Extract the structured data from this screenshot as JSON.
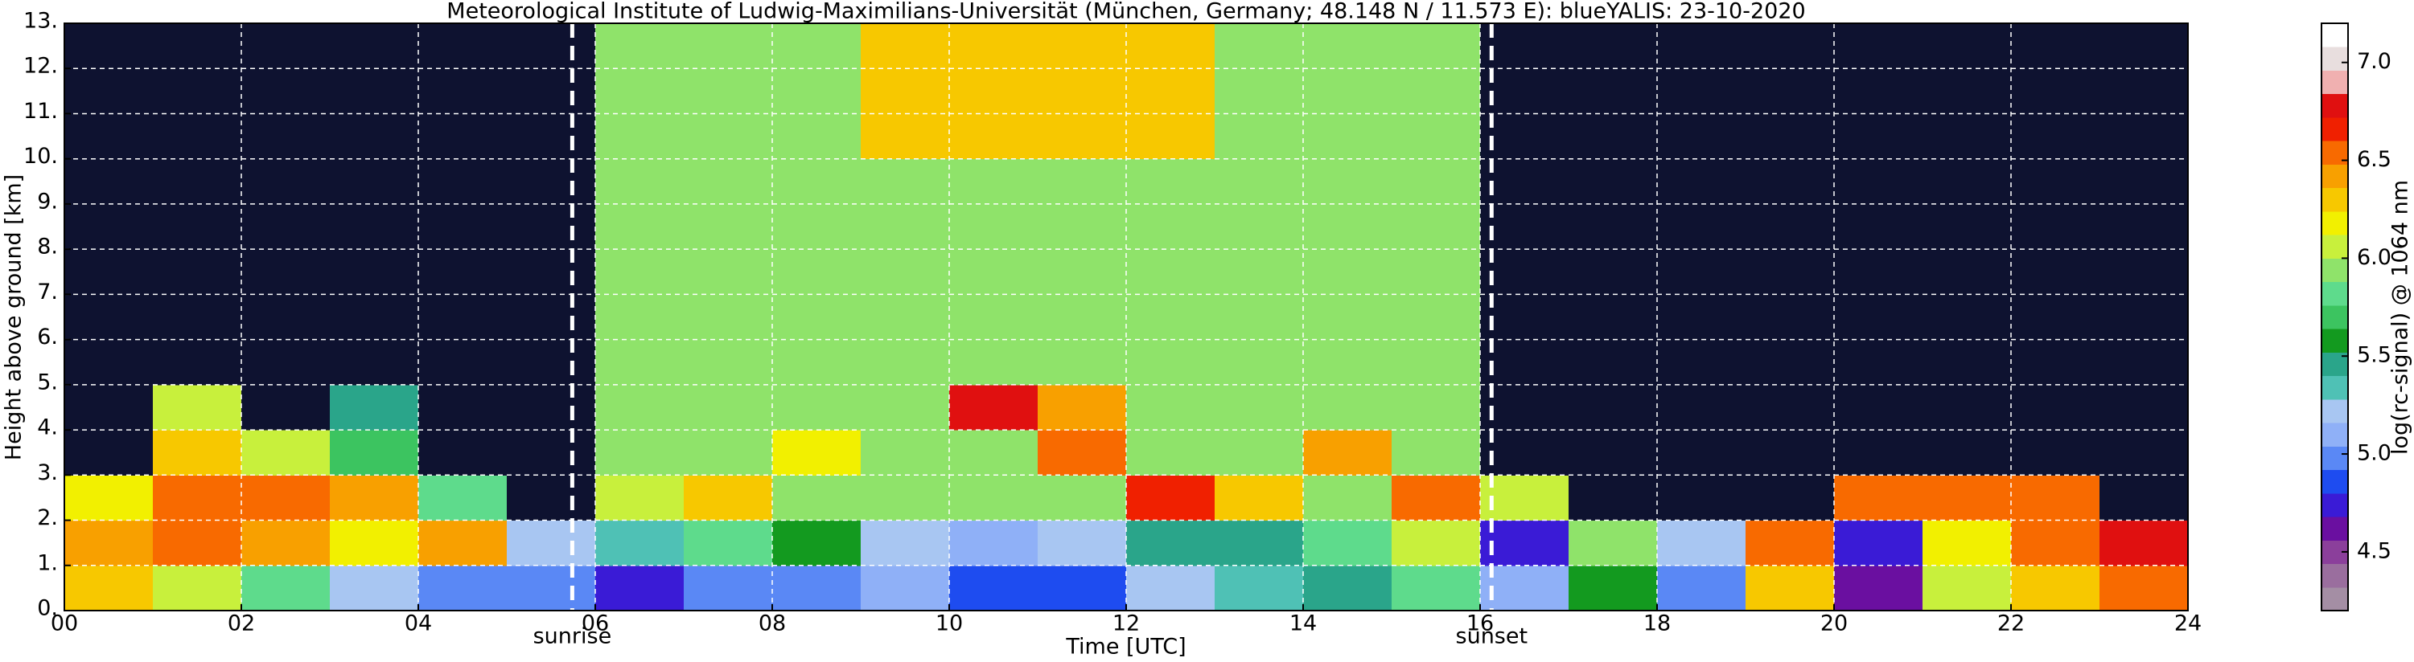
{
  "chart_data": {
    "type": "heatmap",
    "title": "Meteorological Institute of Ludwig-Maximilians-Universität (München, Germany; 48.148 N / 11.573 E):    blueYALIS: 23-10-2020",
    "xlabel": "Time [UTC]",
    "ylabel": "Height above ground [km]",
    "colorbar_label": "log(rc-signal) @ 1064 nm",
    "x": [
      0.5,
      1.5,
      2.5,
      3.5,
      4.5,
      5.5,
      6.5,
      7.5,
      8.5,
      9.5,
      10.5,
      11.5,
      12.5,
      13.5,
      14.5,
      15.5,
      16.5,
      17.5,
      18.5,
      19.5,
      20.5,
      21.5,
      22.5,
      23.5
    ],
    "y": [
      0.5,
      1.5,
      2.5,
      3.5,
      4.5,
      5.5,
      6.5,
      7.5,
      8.5,
      9.5,
      10.5,
      11.5,
      12.5
    ],
    "values": [
      [
        6.3,
        6.0,
        5.8,
        5.2,
        5.0,
        5.0,
        4.8,
        5.0,
        5.0,
        5.1,
        4.9,
        4.9,
        5.2,
        5.3,
        5.5,
        5.8,
        5.1,
        5.6,
        5.0,
        6.3,
        4.6,
        6.0,
        6.3,
        6.5
      ],
      [
        6.4,
        6.5,
        6.4,
        6.2,
        6.4,
        5.2,
        5.3,
        5.8,
        5.6,
        5.2,
        5.1,
        5.2,
        5.5,
        5.4,
        5.8,
        6.0,
        4.8,
        5.9,
        5.2,
        6.6,
        4.7,
        6.2,
        6.5,
        6.8
      ],
      [
        6.2,
        6.6,
        6.5,
        6.4,
        5.8,
        4.0,
        6.0,
        6.3,
        5.9,
        5.9,
        5.9,
        5.9,
        6.7,
        6.3,
        5.9,
        6.5,
        6.0,
        4.0,
        4.0,
        4.0,
        6.5,
        6.6,
        6.6,
        4.0
      ],
      [
        4.0,
        6.3,
        6.0,
        5.7,
        4.0,
        4.0,
        5.9,
        5.9,
        6.2,
        5.9,
        5.9,
        6.6,
        5.9,
        5.9,
        6.4,
        5.9,
        4.0,
        4.0,
        4.0,
        4.0,
        4.0,
        4.0,
        4.0,
        4.0
      ],
      [
        4.0,
        6.0,
        4.0,
        5.5,
        4.0,
        4.0,
        5.9,
        5.9,
        5.9,
        5.9,
        6.8,
        6.4,
        5.9,
        5.9,
        5.9,
        5.9,
        4.0,
        4.0,
        4.0,
        4.0,
        4.0,
        4.0,
        4.0,
        4.0
      ],
      [
        4.0,
        4.0,
        4.0,
        4.0,
        4.0,
        4.0,
        5.9,
        5.9,
        5.9,
        5.9,
        5.9,
        5.9,
        5.9,
        5.9,
        5.9,
        5.9,
        4.0,
        4.0,
        4.0,
        4.0,
        4.0,
        4.0,
        4.0,
        4.0
      ],
      [
        4.0,
        4.0,
        4.0,
        4.0,
        4.0,
        4.0,
        5.9,
        5.9,
        5.9,
        5.9,
        5.9,
        5.9,
        5.9,
        5.9,
        5.9,
        5.9,
        4.0,
        4.0,
        4.0,
        4.0,
        4.0,
        4.0,
        4.0,
        4.0
      ],
      [
        4.0,
        4.0,
        4.0,
        4.0,
        4.0,
        4.0,
        5.9,
        5.9,
        5.9,
        5.9,
        5.9,
        5.9,
        5.9,
        5.9,
        5.9,
        5.9,
        4.0,
        4.0,
        4.0,
        4.0,
        4.0,
        4.0,
        4.0,
        4.0
      ],
      [
        4.0,
        4.0,
        4.0,
        4.0,
        4.0,
        4.0,
        5.9,
        5.9,
        5.9,
        5.9,
        5.9,
        5.9,
        5.9,
        5.9,
        5.9,
        5.9,
        4.0,
        4.0,
        4.0,
        4.0,
        4.0,
        4.0,
        4.0,
        4.0
      ],
      [
        4.0,
        4.0,
        4.0,
        4.0,
        4.0,
        4.0,
        5.9,
        5.9,
        5.9,
        5.9,
        5.9,
        5.9,
        5.9,
        5.9,
        5.9,
        5.9,
        4.0,
        4.0,
        4.0,
        4.0,
        4.0,
        4.0,
        4.0,
        4.0
      ],
      [
        4.0,
        4.0,
        4.0,
        4.0,
        4.0,
        4.0,
        5.9,
        5.9,
        5.9,
        6.3,
        6.3,
        6.3,
        6.3,
        5.9,
        5.9,
        5.9,
        4.0,
        4.0,
        4.0,
        4.0,
        4.0,
        4.0,
        4.0,
        4.0
      ],
      [
        4.0,
        4.0,
        4.0,
        4.0,
        4.0,
        4.0,
        5.9,
        5.9,
        5.9,
        6.3,
        6.3,
        6.3,
        6.3,
        5.9,
        5.9,
        5.9,
        4.0,
        4.0,
        4.0,
        4.0,
        4.0,
        4.0,
        4.0,
        4.0
      ],
      [
        4.0,
        4.0,
        4.0,
        4.0,
        4.0,
        4.0,
        5.9,
        5.9,
        5.9,
        6.3,
        6.3,
        6.3,
        6.3,
        5.9,
        5.9,
        5.9,
        4.0,
        4.0,
        4.0,
        4.0,
        4.0,
        4.0,
        4.0,
        4.0
      ]
    ],
    "xlim": [
      0,
      24
    ],
    "xticks": [
      {
        "value": 0,
        "label": "00"
      },
      {
        "value": 2,
        "label": "02"
      },
      {
        "value": 4,
        "label": "04"
      },
      {
        "value": 6,
        "label": "06"
      },
      {
        "value": 8,
        "label": "08"
      },
      10,
      12,
      14,
      16,
      18,
      20,
      22,
      24
    ],
    "ylim": [
      0,
      13
    ],
    "yticks": [
      {
        "value": 0,
        "label": "0."
      },
      {
        "value": 1,
        "label": "1."
      },
      {
        "value": 2,
        "label": "2."
      },
      {
        "value": 3,
        "label": "3."
      },
      {
        "value": 4,
        "label": "4."
      },
      {
        "value": 5,
        "label": "5."
      },
      {
        "value": 6,
        "label": "6."
      },
      {
        "value": 7,
        "label": "7."
      },
      {
        "value": 8,
        "label": "8."
      },
      {
        "value": 9,
        "label": "9."
      },
      {
        "value": 10,
        "label": "10."
      },
      {
        "value": 11,
        "label": "11."
      },
      {
        "value": 12,
        "label": "12."
      },
      {
        "value": 13,
        "label": "13."
      }
    ],
    "clim": [
      4.2,
      7.2
    ],
    "cticks": [
      4.5,
      {
        "value": 5,
        "label": "5.0"
      },
      5.5,
      {
        "value": 6,
        "label": "6.0"
      },
      6.5,
      {
        "value": 7,
        "label": "7.0"
      }
    ],
    "colorscale": [
      "#a48ea4",
      "#9a6e9e",
      "#8b3f9b",
      "#6a0fa0",
      "#3a1bd6",
      "#1e4cf0",
      "#5a88f5",
      "#8fb0f7",
      "#a8c6f2",
      "#4fc1b5",
      "#2aa58a",
      "#139a1f",
      "#3cc460",
      "#5edb8c",
      "#8fe36a",
      "#c8f03c",
      "#f2f000",
      "#f7c800",
      "#f8a000",
      "#f86a00",
      "#f02000",
      "#e01010",
      "#f0b0b0",
      "#e8dede",
      "#ffffff"
    ],
    "under_color": "#0e1230",
    "grid": true,
    "annotations": [
      {
        "x": 5.74,
        "label": "sunrise"
      },
      {
        "x": 16.13,
        "label": "sunset"
      }
    ]
  }
}
